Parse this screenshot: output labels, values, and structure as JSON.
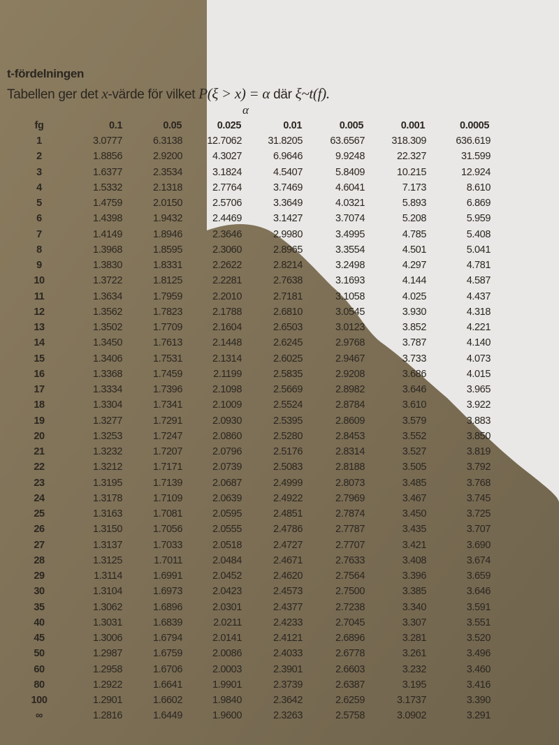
{
  "heading": "t-fördelningen",
  "description": {
    "text_before": "Tabellen ger det ",
    "x_var": "x",
    "text_middle": "-värde för vilket ",
    "formula": "P(ξ > x) = α",
    "text_dar": " där ",
    "distribution": "ξ~t(f)."
  },
  "alpha_label": "α",
  "table": {
    "columns": [
      "fg",
      "0.1",
      "0.05",
      "0.025",
      "0.01",
      "0.005",
      "0.001",
      "0.0005"
    ],
    "rows": [
      [
        "1",
        "3.0777",
        "6.3138",
        "12.7062",
        "31.8205",
        "63.6567",
        "318.309",
        "636.619"
      ],
      [
        "2",
        "1.8856",
        "2.9200",
        "4.3027",
        "6.9646",
        "9.9248",
        "22.327",
        "31.599"
      ],
      [
        "3",
        "1.6377",
        "2.3534",
        "3.1824",
        "4.5407",
        "5.8409",
        "10.215",
        "12.924"
      ],
      [
        "4",
        "1.5332",
        "2.1318",
        "2.7764",
        "3.7469",
        "4.6041",
        "7.173",
        "8.610"
      ],
      [
        "5",
        "1.4759",
        "2.0150",
        "2.5706",
        "3.3649",
        "4.0321",
        "5.893",
        "6.869"
      ],
      [
        "6",
        "1.4398",
        "1.9432",
        "2.4469",
        "3.1427",
        "3.7074",
        "5.208",
        "5.959"
      ],
      [
        "7",
        "1.4149",
        "1.8946",
        "2.3646",
        "2.9980",
        "3.4995",
        "4.785",
        "5.408"
      ],
      [
        "8",
        "1.3968",
        "1.8595",
        "2.3060",
        "2.8965",
        "3.3554",
        "4.501",
        "5.041"
      ],
      [
        "9",
        "1.3830",
        "1.8331",
        "2.2622",
        "2.8214",
        "3.2498",
        "4.297",
        "4.781"
      ],
      [
        "10",
        "1.3722",
        "1.8125",
        "2.2281",
        "2.7638",
        "3.1693",
        "4.144",
        "4.587"
      ],
      [
        "11",
        "1.3634",
        "1.7959",
        "2.2010",
        "2.7181",
        "3.1058",
        "4.025",
        "4.437"
      ],
      [
        "12",
        "1.3562",
        "1.7823",
        "2.1788",
        "2.6810",
        "3.0545",
        "3.930",
        "4.318"
      ],
      [
        "13",
        "1.3502",
        "1.7709",
        "2.1604",
        "2.6503",
        "3.0123",
        "3.852",
        "4.221"
      ],
      [
        "14",
        "1.3450",
        "1.7613",
        "2.1448",
        "2.6245",
        "2.9768",
        "3.787",
        "4.140"
      ],
      [
        "15",
        "1.3406",
        "1.7531",
        "2.1314",
        "2.6025",
        "2.9467",
        "3.733",
        "4.073"
      ],
      [
        "16",
        "1.3368",
        "1.7459",
        "2.1199",
        "2.5835",
        "2.9208",
        "3.686",
        "4.015"
      ],
      [
        "17",
        "1.3334",
        "1.7396",
        "2.1098",
        "2.5669",
        "2.8982",
        "3.646",
        "3.965"
      ],
      [
        "18",
        "1.3304",
        "1.7341",
        "2.1009",
        "2.5524",
        "2.8784",
        "3.610",
        "3.922"
      ],
      [
        "19",
        "1.3277",
        "1.7291",
        "2.0930",
        "2.5395",
        "2.8609",
        "3.579",
        "3.883"
      ],
      [
        "20",
        "1.3253",
        "1.7247",
        "2.0860",
        "2.5280",
        "2.8453",
        "3.552",
        "3.850"
      ],
      [
        "21",
        "1.3232",
        "1.7207",
        "2.0796",
        "2.5176",
        "2.8314",
        "3.527",
        "3.819"
      ],
      [
        "22",
        "1.3212",
        "1.7171",
        "2.0739",
        "2.5083",
        "2.8188",
        "3.505",
        "3.792"
      ],
      [
        "23",
        "1.3195",
        "1.7139",
        "2.0687",
        "2.4999",
        "2.8073",
        "3.485",
        "3.768"
      ],
      [
        "24",
        "1.3178",
        "1.7109",
        "2.0639",
        "2.4922",
        "2.7969",
        "3.467",
        "3.745"
      ],
      [
        "25",
        "1.3163",
        "1.7081",
        "2.0595",
        "2.4851",
        "2.7874",
        "3.450",
        "3.725"
      ],
      [
        "26",
        "1.3150",
        "1.7056",
        "2.0555",
        "2.4786",
        "2.7787",
        "3.435",
        "3.707"
      ],
      [
        "27",
        "1.3137",
        "1.7033",
        "2.0518",
        "2.4727",
        "2.7707",
        "3.421",
        "3.690"
      ],
      [
        "28",
        "1.3125",
        "1.7011",
        "2.0484",
        "2.4671",
        "2.7633",
        "3.408",
        "3.674"
      ],
      [
        "29",
        "1.3114",
        "1.6991",
        "2.0452",
        "2.4620",
        "2.7564",
        "3.396",
        "3.659"
      ],
      [
        "30",
        "1.3104",
        "1.6973",
        "2.0423",
        "2.4573",
        "2.7500",
        "3.385",
        "3.646"
      ],
      [
        "35",
        "1.3062",
        "1.6896",
        "2.0301",
        "2.4377",
        "2.7238",
        "3.340",
        "3.591"
      ],
      [
        "40",
        "1.3031",
        "1.6839",
        "2.0211",
        "2.4233",
        "2.7045",
        "3.307",
        "3.551"
      ],
      [
        "45",
        "1.3006",
        "1.6794",
        "2.0141",
        "2.4121",
        "2.6896",
        "3.281",
        "3.520"
      ],
      [
        "50",
        "1.2987",
        "1.6759",
        "2.0086",
        "2.4033",
        "2.6778",
        "3.261",
        "3.496"
      ],
      [
        "60",
        "1.2958",
        "1.6706",
        "2.0003",
        "2.3901",
        "2.6603",
        "3.232",
        "3.460"
      ],
      [
        "80",
        "1.2922",
        "1.6641",
        "1.9901",
        "2.3739",
        "2.6387",
        "3.195",
        "3.416"
      ],
      [
        "100",
        "1.2901",
        "1.6602",
        "1.9840",
        "2.3642",
        "2.6259",
        "3.1737",
        "3.390"
      ],
      [
        "∞",
        "1.2816",
        "1.6449",
        "1.9600",
        "2.3263",
        "2.5758",
        "3.0902",
        "3.291"
      ]
    ]
  }
}
